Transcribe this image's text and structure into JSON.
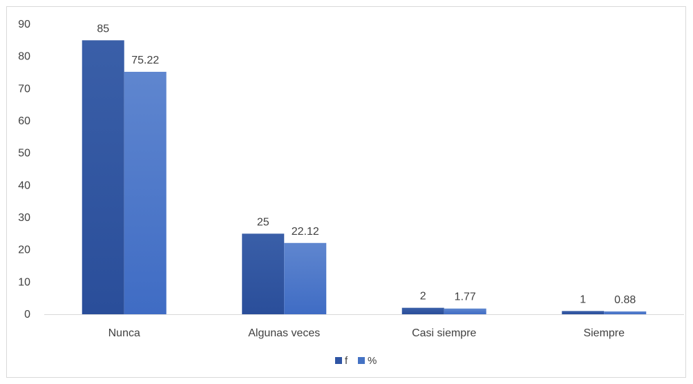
{
  "chart_data": {
    "type": "bar",
    "title": "",
    "xlabel": "",
    "ylabel": "",
    "categories": [
      "Nunca",
      "Algunas veces",
      "Casi siempre",
      "Siempre"
    ],
    "series": [
      {
        "name": "f",
        "values": [
          85,
          25,
          2,
          1
        ],
        "labels": [
          "85",
          "25",
          "2",
          "1"
        ],
        "color": "#2f55a4"
      },
      {
        "name": "%",
        "values": [
          75.22,
          22.12,
          1.77,
          0.88
        ],
        "labels": [
          "75.22",
          "22.12",
          "1.77",
          "0.88"
        ],
        "color": "#4472c4"
      }
    ],
    "ylim": [
      0,
      90
    ],
    "yticks": [
      0,
      10,
      20,
      30,
      40,
      50,
      60,
      70,
      80,
      90
    ],
    "grid": false,
    "legend_position": "bottom"
  }
}
